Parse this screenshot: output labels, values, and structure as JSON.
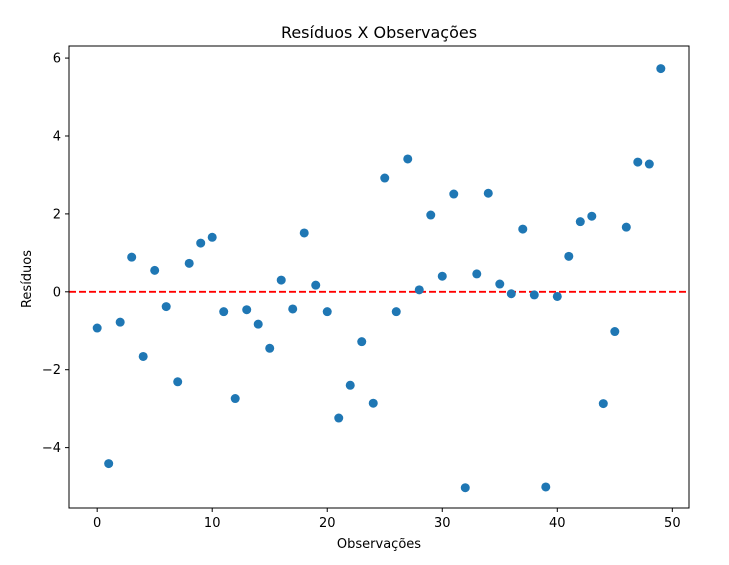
{
  "chart_data": {
    "type": "scatter",
    "title": "Resíduos X Observações",
    "xlabel": "Observações",
    "ylabel": "Resíduos",
    "xlim": [
      -2.45,
      51.45
    ],
    "ylim": [
      -5.55,
      6.31
    ],
    "xticks": [
      0,
      10,
      20,
      30,
      40,
      50
    ],
    "yticks": [
      -4,
      -2,
      0,
      2,
      4,
      6
    ],
    "xtick_labels": [
      "0",
      "10",
      "20",
      "30",
      "40",
      "50"
    ],
    "ytick_labels": [
      "−4",
      "−2",
      "0",
      "2",
      "4",
      "6"
    ],
    "grid": false,
    "marker_color": "#1f77b4",
    "reference_line": {
      "y": 0,
      "style": "dashed",
      "color": "#ff0000"
    },
    "x": [
      0,
      1,
      2,
      3,
      4,
      5,
      6,
      7,
      8,
      9,
      10,
      11,
      12,
      13,
      14,
      15,
      16,
      17,
      18,
      19,
      20,
      21,
      22,
      23,
      24,
      25,
      26,
      27,
      28,
      29,
      30,
      31,
      32,
      33,
      34,
      35,
      36,
      37,
      38,
      39,
      40,
      41,
      42,
      43,
      44,
      45,
      46,
      47,
      48,
      49
    ],
    "y": [
      -0.93,
      -4.41,
      -0.78,
      0.89,
      -1.66,
      0.55,
      -0.38,
      -2.31,
      0.73,
      1.25,
      1.4,
      -0.51,
      -2.74,
      -0.46,
      -0.83,
      -1.45,
      0.3,
      -0.44,
      1.51,
      0.17,
      -0.51,
      -3.24,
      -2.4,
      -1.28,
      -2.86,
      2.92,
      -0.51,
      3.41,
      0.05,
      1.97,
      0.4,
      2.51,
      -5.03,
      0.46,
      2.53,
      0.2,
      -0.05,
      1.61,
      -0.08,
      -5.01,
      -0.12,
      0.91,
      1.8,
      1.94,
      -2.87,
      -1.02,
      1.66,
      3.33,
      3.28,
      5.73
    ]
  }
}
